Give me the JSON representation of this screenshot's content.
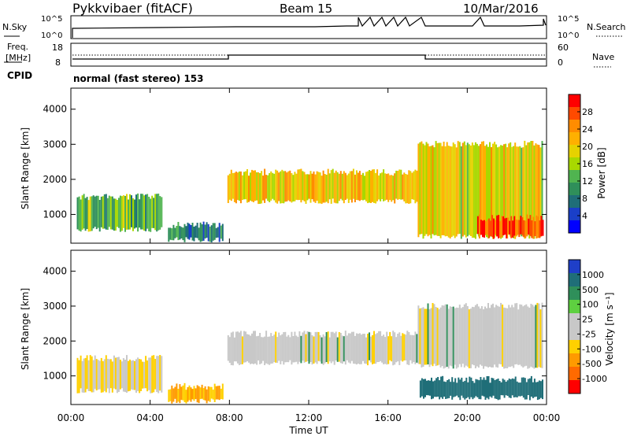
{
  "header": {
    "title": "Pykkvibaer (fitACF)",
    "beam": "Beam 15",
    "date": "10/Mar/2016"
  },
  "status_panels": {
    "nsky_label": "N.Sky",
    "nsearch_label": "N.Search",
    "freq_label_line1": "Freq.",
    "freq_label_line2": "[MHz]",
    "nave_label": "Nave",
    "cpid_label": "CPID",
    "cpid_text": "normal (fast stereo) 153",
    "noise_ticks_left": [
      "10^5",
      "10^0"
    ],
    "noise_ticks_right": [
      "10^5",
      "10^0"
    ],
    "freq_ticks": [
      "18",
      "8"
    ],
    "nave_ticks": [
      "60",
      "0"
    ]
  },
  "colorbars": {
    "power": {
      "label": "Power [dB]",
      "ticks": [
        "28",
        "24",
        "20",
        "16",
        "12",
        "8",
        "4"
      ],
      "colors": [
        "#ff0000",
        "#ff4a00",
        "#ff8c00",
        "#ffb000",
        "#e6d200",
        "#a8d800",
        "#50b450",
        "#2f8f5a",
        "#1f6e78",
        "#1a3fc8",
        "#0000ff"
      ]
    },
    "velocity": {
      "label": "Velocity [m s⁻¹]",
      "ticks": [
        "1000",
        "500",
        "100",
        "25",
        "-25",
        "-100",
        "-500",
        "-1000"
      ],
      "colors": [
        "#1f3fc8",
        "#1f6e78",
        "#2f8f5a",
        "#5ed040",
        "#c8c8c8",
        "#c8c8c8",
        "#ffd000",
        "#ff9a00",
        "#ff6a00",
        "#ff0000"
      ]
    }
  },
  "chart_data": [
    {
      "type": "heatmap",
      "title": "Power",
      "xlabel": "Time UT",
      "ylabel": "Slant Range [km]",
      "x_ticks": [
        "00:00",
        "04:00",
        "08:00",
        "12:00",
        "16:00",
        "20:00",
        "00:00"
      ],
      "y_ticks": [
        1000,
        2000,
        3000,
        4000
      ],
      "xlim_hours": [
        0,
        24
      ],
      "ylim_km": [
        180,
        4600
      ],
      "colorbar": "Power [dB]",
      "regions": [
        {
          "t0": 0.3,
          "t1": 4.6,
          "r0": 500,
          "r1": 1600,
          "power_db": 12
        },
        {
          "t0": 4.9,
          "t1": 7.7,
          "r0": 200,
          "r1": 800,
          "power_db": 8
        },
        {
          "t0": 7.9,
          "t1": 17.5,
          "r0": 1300,
          "r1": 2300,
          "power_db": 20
        },
        {
          "t0": 17.5,
          "t1": 23.8,
          "r0": 300,
          "r1": 3100,
          "power_db": 18
        },
        {
          "t0": 20.5,
          "t1": 23.8,
          "r0": 300,
          "r1": 1000,
          "power_db": 28
        }
      ]
    },
    {
      "type": "heatmap",
      "title": "Velocity",
      "xlabel": "Time UT",
      "ylabel": "Slant Range [km]",
      "x_ticks": [
        "00:00",
        "04:00",
        "08:00",
        "12:00",
        "16:00",
        "20:00",
        "00:00"
      ],
      "y_ticks": [
        1000,
        2000,
        3000,
        4000
      ],
      "xlim_hours": [
        0,
        24
      ],
      "ylim_km": [
        180,
        4600
      ],
      "colorbar": "Velocity [m s⁻¹]",
      "regions": [
        {
          "t0": 0.3,
          "t1": 4.6,
          "r0": 500,
          "r1": 1600,
          "velocity_ms": -25
        },
        {
          "t0": 4.9,
          "t1": 7.7,
          "r0": 200,
          "r1": 800,
          "velocity_ms": -100
        },
        {
          "t0": 7.9,
          "t1": 17.5,
          "r0": 1300,
          "r1": 2300,
          "velocity_ms": 0
        },
        {
          "t0": 17.5,
          "t1": 23.8,
          "r0": 1200,
          "r1": 3100,
          "velocity_ms": 0
        },
        {
          "t0": 17.6,
          "t1": 23.8,
          "r0": 300,
          "r1": 1000,
          "velocity_ms": 300
        }
      ]
    }
  ]
}
